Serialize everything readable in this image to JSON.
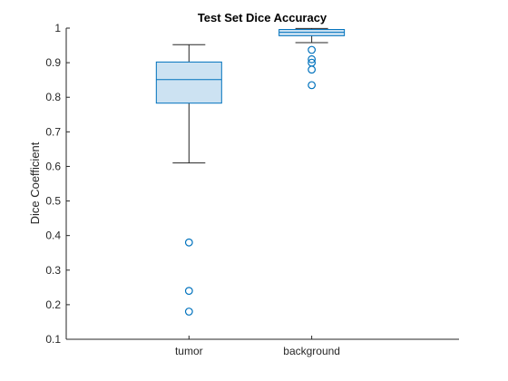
{
  "chart_data": {
    "type": "box",
    "title": "Test Set Dice Accuracy",
    "xlabel": "",
    "ylabel": "Dice Coefficient",
    "ylim": [
      0.1,
      1.0
    ],
    "yticks": [
      0.1,
      0.2,
      0.3,
      0.4,
      0.5,
      0.6,
      0.7,
      0.8,
      0.9,
      1.0
    ],
    "ytick_labels": [
      "0.1",
      "0.2",
      "0.3",
      "0.4",
      "0.5",
      "0.6",
      "0.7",
      "0.8",
      "0.9",
      "1"
    ],
    "grid": false,
    "categories": [
      "tumor",
      "background"
    ],
    "boxes": [
      {
        "category": "tumor",
        "whisker_low": 0.61,
        "q1": 0.783,
        "median": 0.851,
        "q3": 0.902,
        "whisker_high": 0.952,
        "outliers": [
          0.38,
          0.24,
          0.18
        ]
      },
      {
        "category": "background",
        "whisker_low": 0.958,
        "q1": 0.978,
        "median": 0.988,
        "q3": 0.996,
        "whisker_high": 0.999,
        "outliers": [
          0.937,
          0.91,
          0.9,
          0.88,
          0.835
        ]
      }
    ],
    "colors": {
      "box_edge": "#0072bd",
      "box_fill": "#cce2f2",
      "whisker": "#262626",
      "axis": "#262626"
    }
  }
}
